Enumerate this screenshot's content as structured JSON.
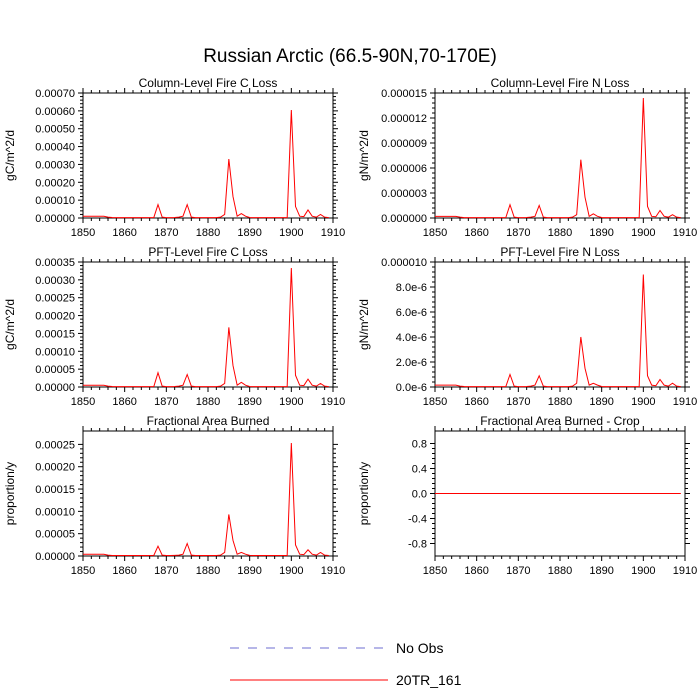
{
  "page_title": "Russian Arctic (66.5-90N,70-170E)",
  "legend": [
    {
      "label": "No Obs",
      "color": "#6e6ed2",
      "dash": "dashed"
    },
    {
      "label": "20TR_161",
      "color": "#ff0000",
      "dash": "solid"
    }
  ],
  "chart_data": [
    {
      "type": "line",
      "title": "Column-Level Fire C Loss",
      "ylabel": "gC/m^2/d",
      "xlim": [
        1850,
        1910
      ],
      "ylim": [
        0,
        0.0007
      ],
      "x_ticks": [
        "1850",
        "1860",
        "1870",
        "1880",
        "1890",
        "1900",
        "1910"
      ],
      "y_ticks": [
        "0.00000",
        "0.00010",
        "0.00020",
        "0.00030",
        "0.00040",
        "0.00050",
        "0.00060",
        "0.00070"
      ],
      "series": [
        {
          "name": "20TR_161",
          "x": [
            1850,
            1851,
            1852,
            1853,
            1854,
            1855,
            1856,
            1857,
            1858,
            1859,
            1860,
            1861,
            1862,
            1863,
            1864,
            1865,
            1866,
            1867,
            1868,
            1869,
            1870,
            1871,
            1872,
            1873,
            1874,
            1875,
            1876,
            1877,
            1878,
            1879,
            1880,
            1881,
            1882,
            1883,
            1884,
            1885,
            1886,
            1887,
            1888,
            1889,
            1890,
            1891,
            1892,
            1893,
            1894,
            1895,
            1896,
            1897,
            1898,
            1899,
            1900,
            1901,
            1902,
            1903,
            1904,
            1905,
            1906,
            1907,
            1908,
            1909
          ],
          "y": [
            1e-05,
            1e-05,
            1e-05,
            1e-05,
            1e-05,
            1e-05,
            5e-06,
            3e-06,
            2e-06,
            2e-06,
            2e-06,
            2e-06,
            2e-06,
            2e-06,
            2e-06,
            2e-06,
            2e-06,
            3e-06,
            7.5e-05,
            5e-06,
            2e-06,
            2e-06,
            3e-06,
            5e-06,
            1e-05,
            7.5e-05,
            5e-06,
            2e-06,
            2e-06,
            2e-06,
            2e-06,
            2e-06,
            2e-06,
            5e-06,
            2e-05,
            0.00033,
            0.00012,
            1e-05,
            2.5e-05,
            1e-05,
            3e-06,
            2e-06,
            2e-06,
            2e-06,
            2e-06,
            2e-06,
            2e-06,
            2e-06,
            2e-06,
            2e-06,
            0.000605,
            6.5e-05,
            1e-05,
            8e-06,
            4.5e-05,
            1e-05,
            5e-06,
            2e-05,
            5e-06,
            2e-06
          ]
        }
      ]
    },
    {
      "type": "line",
      "title": "Column-Level Fire N Loss",
      "ylabel": "gN/m^2/d",
      "xlim": [
        1850,
        1910
      ],
      "ylim": [
        0,
        1.5e-05
      ],
      "x_ticks": [
        "1850",
        "1860",
        "1870",
        "1880",
        "1890",
        "1900",
        "1910"
      ],
      "y_ticks": [
        "0.000000",
        "0.000003",
        "0.000006",
        "0.000009",
        "0.000012",
        "0.000015"
      ],
      "series": [
        {
          "name": "20TR_161",
          "x": [
            1850,
            1851,
            1852,
            1853,
            1854,
            1855,
            1856,
            1857,
            1858,
            1859,
            1860,
            1861,
            1862,
            1863,
            1864,
            1865,
            1866,
            1867,
            1868,
            1869,
            1870,
            1871,
            1872,
            1873,
            1874,
            1875,
            1876,
            1877,
            1878,
            1879,
            1880,
            1881,
            1882,
            1883,
            1884,
            1885,
            1886,
            1887,
            1888,
            1889,
            1890,
            1891,
            1892,
            1893,
            1894,
            1895,
            1896,
            1897,
            1898,
            1899,
            1900,
            1901,
            1902,
            1903,
            1904,
            1905,
            1906,
            1907,
            1908,
            1909
          ],
          "y": [
            2e-07,
            2e-07,
            2e-07,
            2e-07,
            2e-07,
            2e-07,
            1e-07,
            5e-08,
            4e-08,
            4e-08,
            4e-08,
            4e-08,
            4e-08,
            4e-08,
            4e-08,
            4e-08,
            4e-08,
            6e-08,
            1.6e-06,
            1e-07,
            4e-08,
            4e-08,
            6e-08,
            1e-07,
            2e-07,
            1.5e-06,
            1e-07,
            4e-08,
            4e-08,
            4e-08,
            4e-08,
            4e-08,
            4e-08,
            1e-07,
            4e-07,
            7e-06,
            2.5e-06,
            2e-07,
            5e-07,
            2e-07,
            6e-08,
            4e-08,
            4e-08,
            4e-08,
            4e-08,
            4e-08,
            4e-08,
            4e-08,
            4e-08,
            4e-08,
            1.44e-05,
            1.4e-06,
            2e-07,
            1.5e-07,
            9e-07,
            2e-07,
            1e-07,
            4e-07,
            1e-07,
            4e-08
          ]
        }
      ]
    },
    {
      "type": "line",
      "title": "PFT-Level Fire C Loss",
      "ylabel": "gC/m^2/d",
      "xlim": [
        1850,
        1910
      ],
      "ylim": [
        0,
        0.00035
      ],
      "x_ticks": [
        "1850",
        "1860",
        "1870",
        "1880",
        "1890",
        "1900",
        "1910"
      ],
      "y_ticks": [
        "0.00000",
        "0.00005",
        "0.00010",
        "0.00015",
        "0.00020",
        "0.00025",
        "0.00030",
        "0.00035"
      ],
      "series": [
        {
          "name": "20TR_161",
          "x": [
            1850,
            1851,
            1852,
            1853,
            1854,
            1855,
            1856,
            1857,
            1858,
            1859,
            1860,
            1861,
            1862,
            1863,
            1864,
            1865,
            1866,
            1867,
            1868,
            1869,
            1870,
            1871,
            1872,
            1873,
            1874,
            1875,
            1876,
            1877,
            1878,
            1879,
            1880,
            1881,
            1882,
            1883,
            1884,
            1885,
            1886,
            1887,
            1888,
            1889,
            1890,
            1891,
            1892,
            1893,
            1894,
            1895,
            1896,
            1897,
            1898,
            1899,
            1900,
            1901,
            1902,
            1903,
            1904,
            1905,
            1906,
            1907,
            1908,
            1909
          ],
          "y": [
            5e-06,
            5e-06,
            5e-06,
            5e-06,
            5e-06,
            5e-06,
            2.5e-06,
            1.5e-06,
            1e-06,
            1e-06,
            1e-06,
            1e-06,
            1e-06,
            1e-06,
            1e-06,
            1e-06,
            1e-06,
            1.5e-06,
            4e-05,
            2.5e-06,
            1e-06,
            1e-06,
            1.5e-06,
            2.5e-06,
            5e-06,
            3.5e-05,
            2.5e-06,
            1e-06,
            1e-06,
            1e-06,
            1e-06,
            1e-06,
            1e-06,
            2.5e-06,
            1e-05,
            0.000167,
            6e-05,
            5e-06,
            1.3e-05,
            5e-06,
            1.5e-06,
            1e-06,
            1e-06,
            1e-06,
            1e-06,
            1e-06,
            1e-06,
            1e-06,
            1e-06,
            1e-06,
            0.000333,
            3.3e-05,
            5e-06,
            4e-06,
            2.2e-05,
            5e-06,
            2.5e-06,
            1e-05,
            2.5e-06,
            1e-06
          ]
        }
      ]
    },
    {
      "type": "line",
      "title": "PFT-Level Fire N Loss",
      "ylabel": "gN/m^2/d",
      "xlim": [
        1850,
        1910
      ],
      "ylim": [
        0,
        1e-05
      ],
      "x_ticks": [
        "1850",
        "1860",
        "1870",
        "1880",
        "1890",
        "1900",
        "1910"
      ],
      "y_ticks": [
        "0.0e-6",
        "2.0e-6",
        "4.0e-6",
        "6.0e-6",
        "8.0e-6",
        "0.000010"
      ],
      "series": [
        {
          "name": "20TR_161",
          "x": [
            1850,
            1851,
            1852,
            1853,
            1854,
            1855,
            1856,
            1857,
            1858,
            1859,
            1860,
            1861,
            1862,
            1863,
            1864,
            1865,
            1866,
            1867,
            1868,
            1869,
            1870,
            1871,
            1872,
            1873,
            1874,
            1875,
            1876,
            1877,
            1878,
            1879,
            1880,
            1881,
            1882,
            1883,
            1884,
            1885,
            1886,
            1887,
            1888,
            1889,
            1890,
            1891,
            1892,
            1893,
            1894,
            1895,
            1896,
            1897,
            1898,
            1899,
            1900,
            1901,
            1902,
            1903,
            1904,
            1905,
            1906,
            1907,
            1908,
            1909
          ],
          "y": [
            1.5e-07,
            1.5e-07,
            1.5e-07,
            1.5e-07,
            1.5e-07,
            1.5e-07,
            7e-08,
            4e-08,
            3e-08,
            3e-08,
            3e-08,
            3e-08,
            3e-08,
            3e-08,
            3e-08,
            3e-08,
            3e-08,
            4e-08,
            1e-06,
            7e-08,
            3e-08,
            3e-08,
            4e-08,
            7e-08,
            1.5e-07,
            9e-07,
            7e-08,
            3e-08,
            3e-08,
            3e-08,
            3e-08,
            3e-08,
            3e-08,
            7e-08,
            3e-07,
            4e-06,
            1.5e-06,
            1.5e-07,
            3e-07,
            1.5e-07,
            4e-08,
            3e-08,
            3e-08,
            3e-08,
            3e-08,
            3e-08,
            3e-08,
            3e-08,
            3e-08,
            3e-08,
            9e-06,
            9e-07,
            1.5e-07,
            1e-07,
            6e-07,
            1.5e-07,
            7e-08,
            3e-07,
            7e-08,
            3e-08
          ]
        }
      ]
    },
    {
      "type": "line",
      "title": "Fractional Area Burned",
      "ylabel": "proportion/y",
      "xlim": [
        1850,
        1910
      ],
      "ylim": [
        0,
        0.00028
      ],
      "x_ticks": [
        "1850",
        "1860",
        "1870",
        "1880",
        "1890",
        "1900",
        "1910"
      ],
      "y_ticks": [
        "0.00000",
        "0.00005",
        "0.00010",
        "0.00015",
        "0.00020",
        "0.00025"
      ],
      "series": [
        {
          "name": "20TR_161",
          "x": [
            1850,
            1851,
            1852,
            1853,
            1854,
            1855,
            1856,
            1857,
            1858,
            1859,
            1860,
            1861,
            1862,
            1863,
            1864,
            1865,
            1866,
            1867,
            1868,
            1869,
            1870,
            1871,
            1872,
            1873,
            1874,
            1875,
            1876,
            1877,
            1878,
            1879,
            1880,
            1881,
            1882,
            1883,
            1884,
            1885,
            1886,
            1887,
            1888,
            1889,
            1890,
            1891,
            1892,
            1893,
            1894,
            1895,
            1896,
            1897,
            1898,
            1899,
            1900,
            1901,
            1902,
            1903,
            1904,
            1905,
            1906,
            1907,
            1908,
            1909
          ],
          "y": [
            4e-06,
            4e-06,
            4e-06,
            4e-06,
            4e-06,
            4e-06,
            2e-06,
            1e-06,
            1e-06,
            1e-06,
            1e-06,
            1e-06,
            1e-06,
            1e-06,
            1e-06,
            1e-06,
            1e-06,
            1.5e-06,
            2.2e-05,
            2e-06,
            1e-06,
            1e-06,
            1.5e-06,
            2e-06,
            4e-06,
            2.8e-05,
            2e-06,
            1e-06,
            1e-06,
            1e-06,
            1e-06,
            1e-06,
            1e-06,
            2e-06,
            8e-06,
            9.3e-05,
            3.5e-05,
            4e-06,
            8e-06,
            4e-06,
            1.5e-06,
            1e-06,
            1e-06,
            1e-06,
            1e-06,
            1e-06,
            1e-06,
            1e-06,
            1e-06,
            1e-06,
            0.000253,
            2.5e-05,
            4e-06,
            3e-06,
            1.4e-05,
            4e-06,
            2e-06,
            8e-06,
            2e-06,
            1e-06
          ]
        }
      ]
    },
    {
      "type": "line",
      "title": "Fractional Area Burned - Crop",
      "ylabel": "proportion/y",
      "xlim": [
        1850,
        1910
      ],
      "ylim": [
        -1,
        1
      ],
      "x_ticks": [
        "1850",
        "1860",
        "1870",
        "1880",
        "1890",
        "1900",
        "1910"
      ],
      "y_ticks": [
        "-0.8",
        "-0.4",
        "0.0",
        "0.4",
        "0.8"
      ],
      "y_tick_values": [
        -0.8,
        -0.4,
        0.0,
        0.4,
        0.8
      ],
      "series": [
        {
          "name": "20TR_161",
          "x": [
            1850,
            1909
          ],
          "y": [
            0,
            0
          ]
        }
      ]
    }
  ]
}
